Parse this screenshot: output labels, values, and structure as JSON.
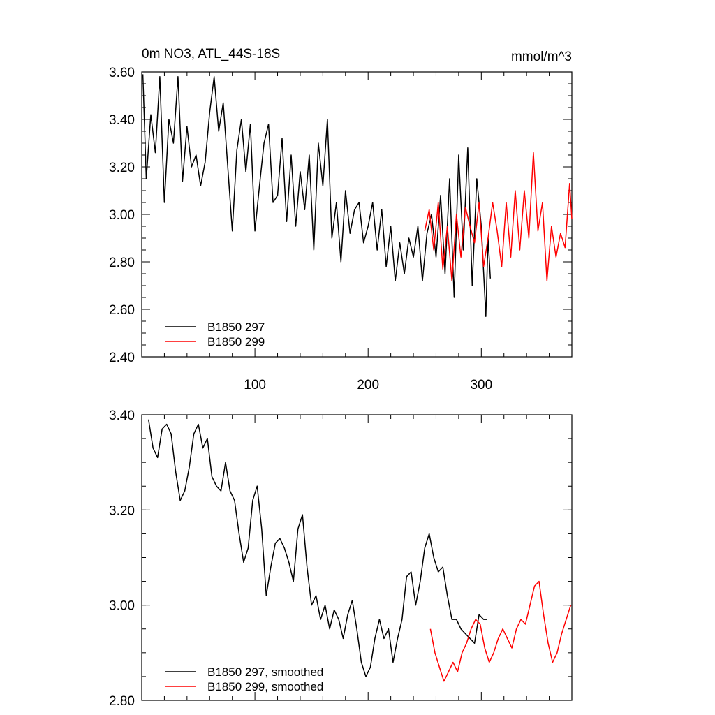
{
  "chart_data": [
    {
      "type": "line",
      "title": "0m NO3, ATL_44S-18S",
      "units": "mmol/m^3",
      "xlabel": "",
      "ylabel": "",
      "xlim": [
        0,
        380
      ],
      "ylim": [
        2.4,
        3.6
      ],
      "x_ticks": [
        100,
        200,
        300
      ],
      "x_tick_labels": [
        "100",
        "200",
        "300"
      ],
      "y_ticks": [
        2.4,
        2.6,
        2.8,
        3.0,
        3.2,
        3.4,
        3.6
      ],
      "y_tick_labels": [
        "2.40",
        "2.60",
        "2.80",
        "3.00",
        "3.20",
        "3.40",
        "3.60"
      ],
      "legend": {
        "position": "bottom-left",
        "entries": [
          "B1850 297",
          "B1850 299"
        ]
      },
      "series": [
        {
          "name": "B1850 297",
          "color": "#000000",
          "x": [
            1,
            4,
            8,
            12,
            16,
            20,
            24,
            28,
            32,
            36,
            40,
            44,
            48,
            52,
            56,
            60,
            64,
            68,
            72,
            76,
            80,
            84,
            88,
            92,
            96,
            100,
            104,
            108,
            112,
            116,
            120,
            124,
            128,
            132,
            136,
            140,
            144,
            148,
            152,
            156,
            160,
            164,
            168,
            172,
            176,
            180,
            184,
            188,
            192,
            196,
            200,
            204,
            208,
            212,
            216,
            220,
            224,
            228,
            232,
            236,
            240,
            244,
            248,
            252,
            256,
            260,
            264,
            268,
            272,
            276,
            280,
            284,
            288,
            292,
            296,
            300,
            304,
            306,
            308
          ],
          "y": [
            3.59,
            3.15,
            3.42,
            3.26,
            3.58,
            3.05,
            3.4,
            3.3,
            3.58,
            3.14,
            3.37,
            3.2,
            3.25,
            3.12,
            3.22,
            3.43,
            3.58,
            3.35,
            3.47,
            3.2,
            2.93,
            3.27,
            3.4,
            3.18,
            3.38,
            2.93,
            3.12,
            3.3,
            3.38,
            3.05,
            3.08,
            3.32,
            2.97,
            3.25,
            2.95,
            3.18,
            3.02,
            3.25,
            2.85,
            3.3,
            3.12,
            3.4,
            2.9,
            3.05,
            2.8,
            3.1,
            2.92,
            3.02,
            3.05,
            2.88,
            2.95,
            3.05,
            2.85,
            3.02,
            2.78,
            2.95,
            2.72,
            2.88,
            2.75,
            2.9,
            2.82,
            2.95,
            2.72,
            2.92,
            3.0,
            2.82,
            3.08,
            2.75,
            3.15,
            2.65,
            3.25,
            2.85,
            3.28,
            2.7,
            3.15,
            2.95,
            2.57,
            2.9,
            2.73
          ]
        },
        {
          "name": "B1850 299",
          "color": "#ff0000",
          "x": [
            250,
            254,
            258,
            262,
            266,
            270,
            274,
            278,
            282,
            286,
            290,
            294,
            298,
            302,
            306,
            310,
            314,
            318,
            322,
            326,
            330,
            334,
            338,
            342,
            346,
            350,
            354,
            358,
            362,
            366,
            370,
            374,
            378,
            380
          ],
          "y": [
            2.93,
            3.02,
            2.85,
            3.05,
            2.77,
            2.95,
            2.72,
            3.0,
            2.82,
            3.03,
            2.95,
            2.88,
            3.05,
            2.78,
            2.9,
            3.05,
            2.93,
            2.78,
            3.05,
            2.82,
            3.1,
            2.85,
            3.1,
            2.9,
            3.26,
            2.93,
            3.05,
            2.72,
            2.95,
            2.82,
            2.92,
            2.86,
            3.13,
            2.98
          ]
        }
      ]
    },
    {
      "type": "line",
      "title": "",
      "xlabel": "",
      "ylabel": "",
      "xlim": [
        0,
        380
      ],
      "ylim": [
        2.8,
        3.4
      ],
      "x_ticks": [
        100,
        200,
        300
      ],
      "x_tick_labels": [],
      "y_ticks": [
        2.8,
        3.0,
        3.2,
        3.4
      ],
      "y_tick_labels": [
        "2.80",
        "3.00",
        "3.20",
        "3.40"
      ],
      "legend": {
        "position": "bottom-left",
        "entries": [
          "B1850 297, smoothed",
          "B1850 299, smoothed"
        ]
      },
      "series": [
        {
          "name": "B1850 297, smoothed",
          "color": "#000000",
          "x": [
            6,
            10,
            14,
            18,
            22,
            26,
            30,
            34,
            38,
            42,
            46,
            50,
            54,
            58,
            62,
            66,
            70,
            74,
            78,
            82,
            86,
            90,
            94,
            98,
            102,
            106,
            110,
            114,
            118,
            122,
            126,
            130,
            134,
            138,
            142,
            146,
            150,
            154,
            158,
            162,
            166,
            170,
            174,
            178,
            182,
            186,
            190,
            194,
            198,
            202,
            206,
            210,
            214,
            218,
            222,
            226,
            230,
            234,
            238,
            242,
            246,
            250,
            254,
            258,
            262,
            266,
            270,
            274,
            278,
            282,
            286,
            290,
            294,
            298,
            302,
            305
          ],
          "y": [
            3.39,
            3.33,
            3.31,
            3.37,
            3.38,
            3.36,
            3.28,
            3.22,
            3.24,
            3.29,
            3.36,
            3.38,
            3.33,
            3.35,
            3.27,
            3.25,
            3.24,
            3.3,
            3.24,
            3.22,
            3.15,
            3.09,
            3.12,
            3.22,
            3.25,
            3.16,
            3.02,
            3.08,
            3.13,
            3.14,
            3.12,
            3.09,
            3.05,
            3.16,
            3.19,
            3.08,
            3.0,
            3.02,
            2.97,
            3.0,
            2.95,
            2.99,
            2.97,
            2.93,
            2.98,
            3.01,
            2.95,
            2.88,
            2.85,
            2.87,
            2.93,
            2.97,
            2.93,
            2.95,
            2.88,
            2.93,
            2.97,
            3.06,
            3.07,
            3.0,
            3.05,
            3.12,
            3.15,
            3.1,
            3.07,
            3.08,
            3.02,
            2.97,
            2.97,
            2.95,
            2.94,
            2.93,
            2.92,
            2.98,
            2.97,
            2.97
          ]
        },
        {
          "name": "B1850 299, smoothed",
          "color": "#ff0000",
          "x": [
            255,
            259,
            263,
            267,
            271,
            275,
            279,
            283,
            287,
            291,
            295,
            299,
            303,
            307,
            311,
            315,
            319,
            323,
            327,
            331,
            335,
            339,
            343,
            347,
            351,
            355,
            359,
            363,
            367,
            371,
            375,
            379
          ],
          "y": [
            2.95,
            2.9,
            2.87,
            2.84,
            2.86,
            2.88,
            2.86,
            2.9,
            2.92,
            2.95,
            2.97,
            2.96,
            2.91,
            2.88,
            2.9,
            2.93,
            2.95,
            2.93,
            2.91,
            2.95,
            2.97,
            2.96,
            3.0,
            3.04,
            3.05,
            2.98,
            2.92,
            2.88,
            2.9,
            2.94,
            2.97,
            3.0
          ]
        }
      ]
    }
  ]
}
